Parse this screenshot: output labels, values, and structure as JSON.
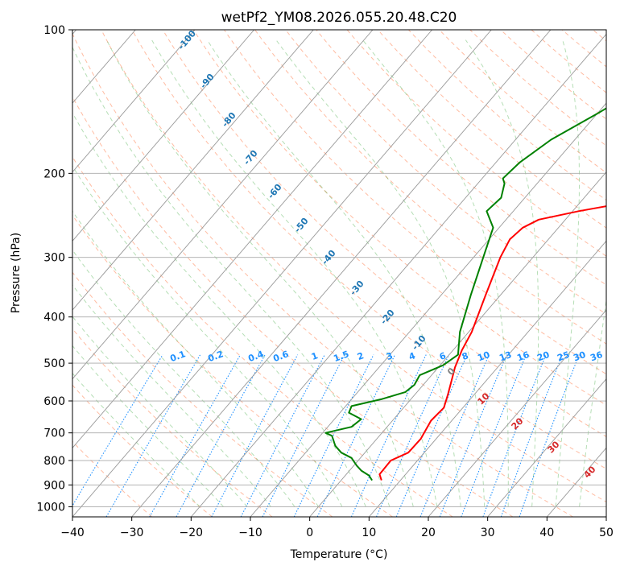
{
  "chart_data": {
    "type": "skew-t",
    "title": "wetPf2_YM08.2026.055.20.48.C20",
    "xlabel": "Temperature (°C)",
    "ylabel": "Pressure (hPa)",
    "xlim": [
      -40,
      50
    ],
    "ylim": [
      1050,
      100
    ],
    "x_ticks": [
      "−40",
      "−30",
      "−20",
      "−10",
      "0",
      "10",
      "20",
      "30",
      "40",
      "50"
    ],
    "y_ticks": [
      "100",
      "200",
      "300",
      "400",
      "500",
      "600",
      "700",
      "800",
      "900",
      "1000"
    ],
    "dry_adiabat_labels": [
      "-100",
      "-90",
      "-80",
      "-70",
      "-60",
      "-50",
      "-40",
      "-30",
      "-20",
      "-10"
    ],
    "mixing_ratio_labels": [
      "0.1",
      "0.2",
      "0.4",
      "0.6",
      "1",
      "1.5",
      "2",
      "3",
      "4",
      "6",
      "8",
      "10",
      "13",
      "16",
      "20",
      "25",
      "30",
      "36"
    ],
    "moist_adiabat_labels": [
      "0",
      "10",
      "20",
      "30",
      "40"
    ],
    "series": [
      {
        "name": "Temperature",
        "color": "#ff0000",
        "points": [
          [
            6.8,
            880
          ],
          [
            5.6,
            855
          ],
          [
            5.5,
            800
          ],
          [
            7.3,
            770
          ],
          [
            7.4,
            720
          ],
          [
            6.5,
            660
          ],
          [
            6.8,
            620
          ],
          [
            5.5,
            580
          ],
          [
            4.2,
            545
          ],
          [
            2.8,
            510
          ],
          [
            1.5,
            470
          ],
          [
            0.5,
            430
          ],
          [
            -2.5,
            360
          ],
          [
            -5.5,
            300
          ],
          [
            -6.5,
            275
          ],
          [
            -6.0,
            260
          ],
          [
            -4.5,
            250
          ],
          [
            1.0,
            240
          ],
          [
            8.0,
            230
          ],
          [
            12.0,
            220
          ],
          [
            17.0,
            200
          ],
          [
            19.0,
            185
          ],
          [
            20.5,
            170
          ],
          [
            21.0,
            160
          ],
          [
            22.5,
            150
          ],
          [
            24.5,
            140
          ],
          [
            26.5,
            130
          ],
          [
            28.5,
            120
          ],
          [
            30.5,
            110
          ],
          [
            32.0,
            100
          ]
        ]
      },
      {
        "name": "Dewpoint",
        "color": "#008000",
        "points": [
          [
            5.2,
            880
          ],
          [
            4.0,
            860
          ],
          [
            2.0,
            840
          ],
          [
            0.5,
            820
          ],
          [
            -0.5,
            805
          ],
          [
            -1.5,
            790
          ],
          [
            -4.0,
            770
          ],
          [
            -6.0,
            745
          ],
          [
            -8.0,
            710
          ],
          [
            -9.5,
            700
          ],
          [
            -6.0,
            680
          ],
          [
            -5.5,
            655
          ],
          [
            -8.5,
            635
          ],
          [
            -9.0,
            615
          ],
          [
            -5.0,
            595
          ],
          [
            -2.0,
            575
          ],
          [
            -1.5,
            555
          ],
          [
            -2.0,
            530
          ],
          [
            0.5,
            505
          ],
          [
            1.5,
            480
          ],
          [
            -1.5,
            430
          ],
          [
            -5.0,
            360
          ],
          [
            -9.0,
            290
          ],
          [
            -11.0,
            260
          ],
          [
            -14.5,
            240
          ],
          [
            -14.0,
            225
          ],
          [
            -15.5,
            210
          ],
          [
            -16.5,
            205
          ],
          [
            -16.0,
            190
          ],
          [
            -14.0,
            170
          ],
          [
            -10.0,
            150
          ],
          [
            -7.0,
            135
          ],
          [
            -3.0,
            115
          ],
          [
            0.5,
            100
          ]
        ]
      }
    ]
  }
}
